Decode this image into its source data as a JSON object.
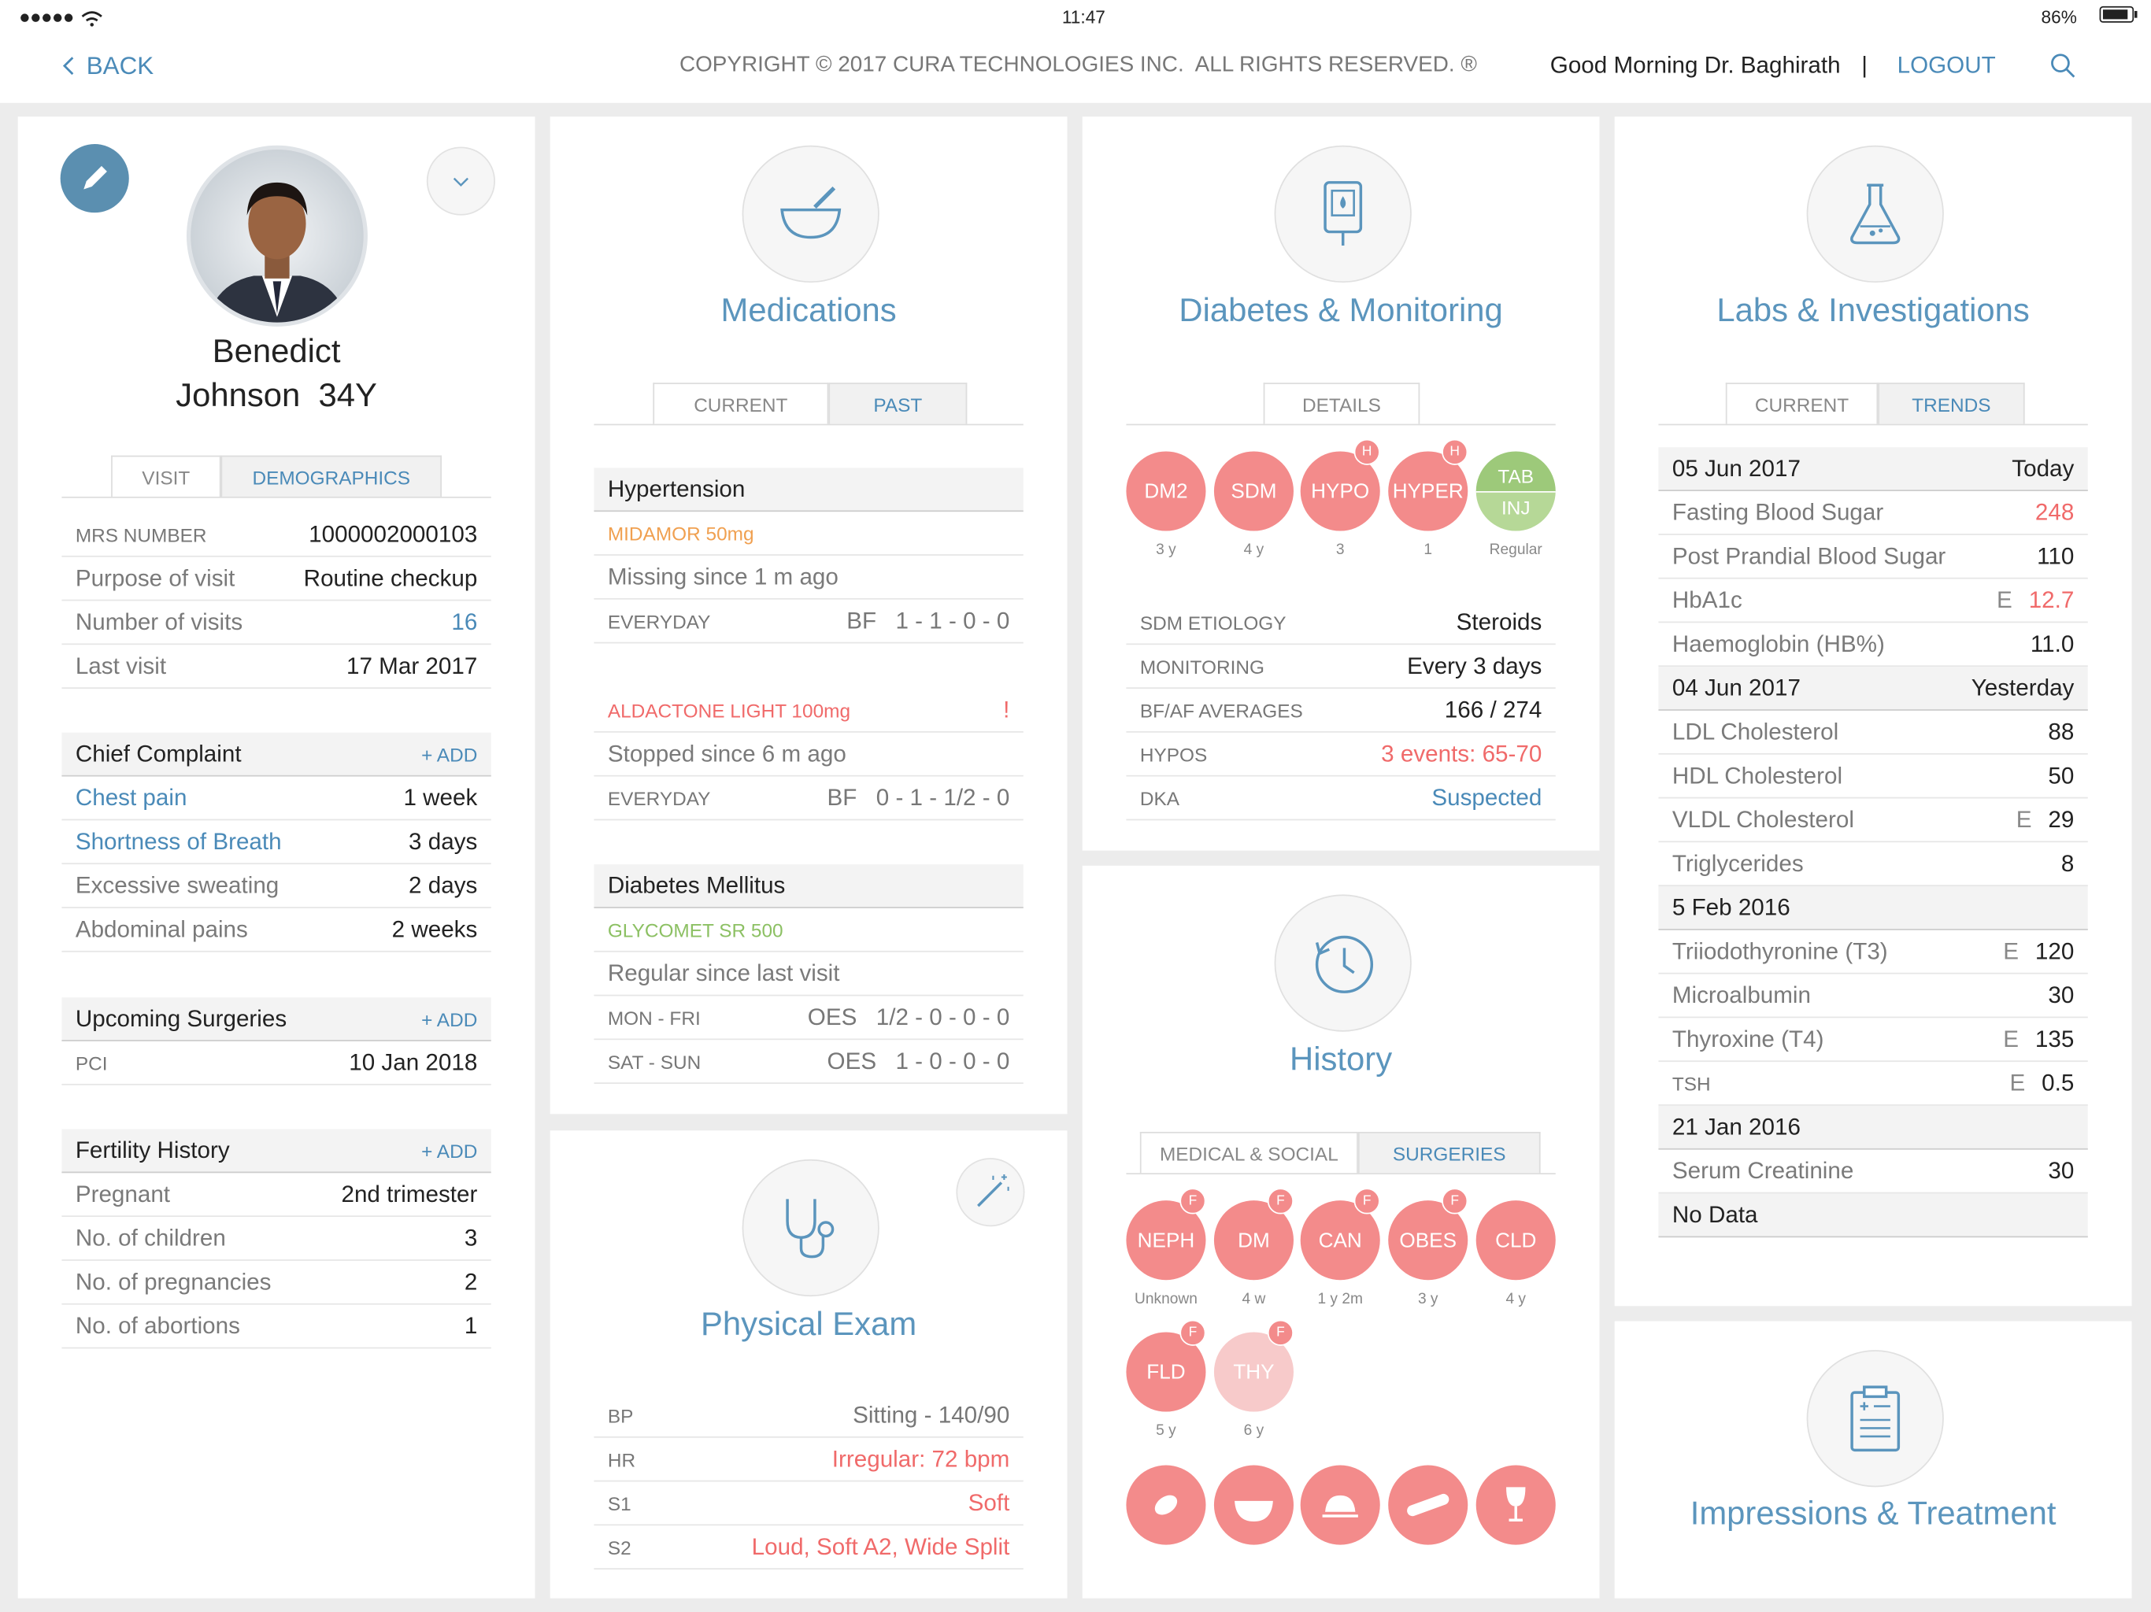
{
  "status": {
    "time": "11:47",
    "battery": "86%"
  },
  "header": {
    "back": "BACK",
    "copyright": "COPYRIGHT © 2017 CURA TECHNOLOGIES INC.  ALL RIGHTS RESERVED. ®",
    "greeting": "Good Morning Dr. Baghirath",
    "separator": "|",
    "logout": "LOGOUT"
  },
  "patient": {
    "name": "Benedict",
    "name_age": "Johnson  34Y",
    "tabs": [
      "VISIT",
      "DEMOGRAPHICS"
    ],
    "visit": [
      {
        "label": "MRS NUMBER",
        "value": "1000002000103"
      },
      {
        "label": "Purpose of visit",
        "value": "Routine checkup"
      },
      {
        "label": "Number of visits",
        "value": "16",
        "value_color": "#4a8ab8"
      },
      {
        "label": "Last visit",
        "value": "17 Mar 2017"
      }
    ],
    "sections": [
      {
        "title": "Chief Complaint",
        "action": "+ ADD",
        "rows": [
          {
            "label": "Chest pain",
            "value": "1 week",
            "label_color": "#4a8ab8"
          },
          {
            "label": "Shortness of Breath",
            "value": "3 days",
            "label_color": "#4a8ab8"
          },
          {
            "label": "Excessive sweating",
            "value": "2 days"
          },
          {
            "label": "Abdominal pains",
            "value": "2 weeks"
          }
        ]
      },
      {
        "title": "Upcoming Surgeries",
        "action": "+ ADD",
        "rows": [
          {
            "label": "PCI",
            "value": "10 Jan 2018"
          }
        ]
      },
      {
        "title": "Fertility History",
        "action": "+ ADD",
        "rows": [
          {
            "label": "Pregnant",
            "value": "2nd trimester"
          },
          {
            "label": "No. of children",
            "value": "3"
          },
          {
            "label": "No. of pregnancies",
            "value": "2"
          },
          {
            "label": "No. of abortions",
            "value": "1"
          }
        ]
      }
    ]
  },
  "medications": {
    "title": "Medications",
    "tabs": [
      "CURRENT",
      "PAST"
    ],
    "groups": [
      {
        "title": "Hypertension",
        "items": [
          {
            "name": "MIDAMOR 50mg",
            "color": "#f0a050",
            "status": "Missing since 1 m ago",
            "schedule": [
              {
                "days": "EVERYDAY",
                "meal": "BF",
                "dose": "1 - 1 - 0 - 0"
              }
            ]
          },
          {
            "name": "ALDACTONE LIGHT 100mg",
            "color": "#f06a6a",
            "alert": "!",
            "status": "Stopped since 6 m ago",
            "schedule": [
              {
                "days": "EVERYDAY",
                "meal": "BF",
                "dose": "0 - 1 - 1/2 - 0"
              }
            ]
          }
        ]
      },
      {
        "title": "Diabetes Mellitus",
        "items": [
          {
            "name": "GLYCOMET SR 500",
            "color": "#8cc063",
            "status": "Regular since last visit",
            "schedule": [
              {
                "days": "MON - FRI",
                "meal": "OES",
                "dose": "1/2 - 0 - 0 - 0"
              },
              {
                "days": "SAT - SUN",
                "meal": "OES",
                "dose": "1 - 0 - 0 - 0"
              }
            ]
          }
        ]
      }
    ]
  },
  "diabetes": {
    "title": "Diabetes & Monitoring",
    "tabs": [
      "DETAILS"
    ],
    "badges": [
      {
        "label": "DM2",
        "note": "3 y"
      },
      {
        "label": "SDM",
        "note": "4 y"
      },
      {
        "label": "HYPO",
        "flag": "H",
        "note": "3"
      },
      {
        "label": "HYPER",
        "flag": "H",
        "note": "1"
      },
      {
        "label": "TAB",
        "label2": "INJ",
        "note": "Regular",
        "color": "#9dc97a"
      }
    ],
    "rows": [
      {
        "label": "SDM ETIOLOGY",
        "value": "Steroids"
      },
      {
        "label": "MONITORING",
        "value": "Every 3 days"
      },
      {
        "label": "BF/AF AVERAGES",
        "value": "166 / 274"
      },
      {
        "label": "HYPOS",
        "value": "3 events: 65-70",
        "value_color": "#f06a6a"
      },
      {
        "label": "DKA",
        "value": "Suspected",
        "value_color": "#4a8ab8"
      }
    ]
  },
  "history": {
    "title": "History",
    "tabs": [
      "MEDICAL & SOCIAL",
      "SURGERIES"
    ],
    "badges": [
      {
        "label": "NEPH",
        "flag": "F",
        "note": "Unknown"
      },
      {
        "label": "DM",
        "flag": "F",
        "note": "4 w"
      },
      {
        "label": "CAN",
        "flag": "F",
        "note": "1 y 2m"
      },
      {
        "label": "OBES",
        "flag": "F",
        "note": "3 y"
      },
      {
        "label": "CLD",
        "note": "4 y"
      },
      {
        "label": "FLD",
        "flag": "F",
        "note": "5 y"
      },
      {
        "label": "THY",
        "flag": "F",
        "note": "6 y",
        "color": "#f7caca"
      }
    ]
  },
  "labs": {
    "title": "Labs & Investigations",
    "tabs": [
      "CURRENT",
      "TRENDS"
    ],
    "rows": [
      {
        "label": "05 Jun 2017",
        "value": "Today",
        "header": true
      },
      {
        "label": "Fasting Blood Sugar",
        "value": "248",
        "value_color": "#f06a6a"
      },
      {
        "label": "Post Prandial Blood Sugar",
        "value": "110"
      },
      {
        "label": "HbA1c",
        "flag": "E",
        "value": "12.7",
        "value_color": "#f06a6a"
      },
      {
        "label": "Haemoglobin (HB%)",
        "value": "11.0"
      },
      {
        "label": "04 Jun 2017",
        "value": "Yesterday",
        "header": true
      },
      {
        "label": "LDL Cholesterol",
        "value": "88"
      },
      {
        "label": "HDL Cholesterol",
        "value": "50"
      },
      {
        "label": "VLDL Cholesterol",
        "flag": "E",
        "value": "29"
      },
      {
        "label": "Triglycerides",
        "value": "8"
      },
      {
        "label": "5 Feb 2016",
        "header": true
      },
      {
        "label": "Triiodothyronine (T3)",
        "flag": "E",
        "value": "120"
      },
      {
        "label": "Microalbumin",
        "value": "30"
      },
      {
        "label": "Thyroxine (T4)",
        "flag": "E",
        "value": "135"
      },
      {
        "label": "TSH",
        "flag": "E",
        "value": "0.5"
      },
      {
        "label": "21 Jan 2016",
        "header": true
      },
      {
        "label": "Serum Creatinine",
        "value": "30"
      },
      {
        "label": "No Data",
        "header": true
      }
    ]
  },
  "exam": {
    "title": "Physical Exam",
    "rows": [
      {
        "label": "BP",
        "value": "Sitting - 140/90"
      },
      {
        "label": "HR",
        "value": "Irregular: 72 bpm",
        "value_color": "#f06a6a"
      },
      {
        "label": "S1",
        "value": "Soft",
        "value_color": "#f06a6a"
      },
      {
        "label": "S2",
        "value": "Loud, Soft A2, Wide Split",
        "value_color": "#f06a6a"
      }
    ]
  },
  "impressions": {
    "title": "Impressions & Treatment"
  }
}
